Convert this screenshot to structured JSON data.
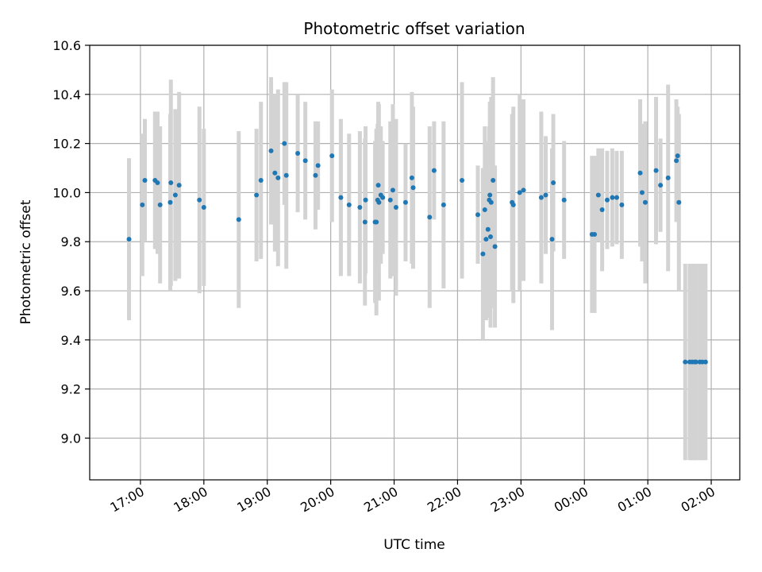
{
  "chart_data": {
    "type": "scatter",
    "title": "Photometric offset variation",
    "xlabel": "UTC time",
    "ylabel": "Photometric offset",
    "grid": true,
    "x_unit": "hours since 00:00 UTC of first night",
    "xlim": [
      16.2,
      26.45
    ],
    "ylim": [
      8.83,
      10.6
    ],
    "x_ticks": [
      17,
      18,
      19,
      20,
      21,
      22,
      23,
      24,
      25,
      26
    ],
    "x_tick_labels": [
      "17:00",
      "18:00",
      "19:00",
      "20:00",
      "21:00",
      "22:00",
      "23:00",
      "00:00",
      "01:00",
      "02:00"
    ],
    "y_ticks": [
      9.0,
      9.2,
      9.4,
      9.6,
      9.8,
      10.0,
      10.2,
      10.4,
      10.6
    ],
    "y_tick_labels": [
      "9.0",
      "9.2",
      "9.4",
      "9.6",
      "9.8",
      "10.0",
      "10.2",
      "10.4",
      "10.6"
    ],
    "colors": {
      "point": "#1f77b4",
      "errorbar": "#d3d3d3",
      "grid": "#b0b0b0"
    },
    "series": [
      {
        "x": [
          16.82,
          17.03,
          17.07,
          17.23,
          17.27,
          17.31,
          17.47,
          17.48,
          17.55,
          17.61,
          17.93,
          18.0,
          18.55,
          18.83,
          18.9,
          19.06,
          19.12,
          19.17,
          19.27,
          19.3,
          19.48,
          19.6,
          19.76,
          19.8,
          20.02,
          20.16,
          20.29,
          20.46,
          20.54,
          20.55,
          20.7,
          20.72,
          20.74,
          20.75,
          20.76,
          20.79,
          20.82,
          20.94,
          20.98,
          21.03,
          21.18,
          21.28,
          21.3,
          21.56,
          21.63,
          21.78,
          22.07,
          22.32,
          22.4,
          22.43,
          22.45,
          22.48,
          22.5,
          22.51,
          22.52,
          22.53,
          22.56,
          22.59,
          22.86,
          22.88,
          22.98,
          23.04,
          23.32,
          23.39,
          23.49,
          23.51,
          23.68,
          24.12,
          24.16,
          24.22,
          24.28,
          24.36,
          24.44,
          24.51,
          24.59,
          24.88,
          24.91,
          24.96,
          25.13,
          25.2,
          25.32,
          25.45,
          25.47,
          25.49,
          25.59,
          25.66,
          25.7,
          25.74,
          25.76,
          25.82,
          25.86,
          25.91
        ],
        "y": [
          9.81,
          9.95,
          10.05,
          10.05,
          10.04,
          9.95,
          9.96,
          10.04,
          9.99,
          10.03,
          9.97,
          9.94,
          9.89,
          9.99,
          10.05,
          10.17,
          10.08,
          10.06,
          10.2,
          10.07,
          10.16,
          10.13,
          10.07,
          10.11,
          10.15,
          9.98,
          9.95,
          9.94,
          9.88,
          9.97,
          9.88,
          9.88,
          9.97,
          10.03,
          9.96,
          9.99,
          9.98,
          9.97,
          10.01,
          9.94,
          9.96,
          10.06,
          10.02,
          9.9,
          10.09,
          9.95,
          10.05,
          9.91,
          9.75,
          9.93,
          9.81,
          9.85,
          9.97,
          9.99,
          9.82,
          9.96,
          10.05,
          9.78,
          9.96,
          9.95,
          10.0,
          10.01,
          9.98,
          9.99,
          9.81,
          10.04,
          9.97,
          9.83,
          9.83,
          9.99,
          9.93,
          9.97,
          9.98,
          9.98,
          9.95,
          10.08,
          10.0,
          9.96,
          10.09,
          10.03,
          10.06,
          10.13,
          10.15,
          9.96,
          9.31,
          9.31,
          9.31,
          9.31,
          9.31,
          9.31,
          9.31,
          9.31
        ],
        "err": [
          0.33,
          0.29,
          0.25,
          0.28,
          0.29,
          0.32,
          0.36,
          0.42,
          0.35,
          0.38,
          0.38,
          0.32,
          0.36,
          0.27,
          0.32,
          0.3,
          0.32,
          0.36,
          0.25,
          0.38,
          0.24,
          0.24,
          0.22,
          0.18,
          0.27,
          0.32,
          0.29,
          0.31,
          0.34,
          0.3,
          0.33,
          0.38,
          0.31,
          0.34,
          0.4,
          0.28,
          0.23,
          0.32,
          0.35,
          0.36,
          0.24,
          0.35,
          0.33,
          0.37,
          0.2,
          0.34,
          0.4,
          0.2,
          0.35,
          0.34,
          0.33,
          0.36,
          0.3,
          0.38,
          0.37,
          0.43,
          0.42,
          0.33,
          0.36,
          0.4,
          0.4,
          0.37,
          0.35,
          0.24,
          0.37,
          0.28,
          0.24,
          0.32,
          0.32,
          0.19,
          0.25,
          0.2,
          0.2,
          0.19,
          0.22,
          0.3,
          0.28,
          0.33,
          0.3,
          0.19,
          0.38,
          0.25,
          0.2,
          0.36,
          0.4,
          0.4,
          0.4,
          0.4,
          0.4,
          0.4,
          0.4,
          0.4
        ]
      }
    ]
  }
}
